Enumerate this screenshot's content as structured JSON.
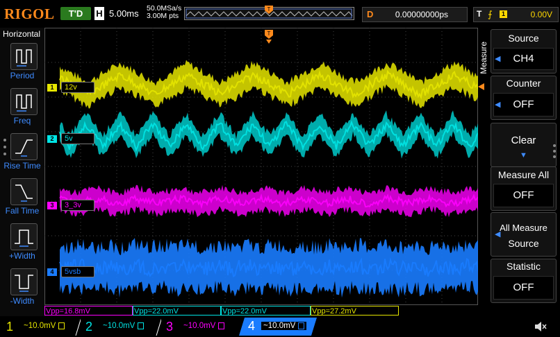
{
  "topbar": {
    "logo": "RIGOL",
    "trigger_status": "T'D",
    "horizontal_label": "H",
    "timebase": "5.00ms",
    "sample_rate": "50.0MSa/s",
    "memory_depth": "3.00M pts",
    "delay_label": "D",
    "delay_value": "0.00000000ps",
    "trigger_label": "T",
    "trigger_source": "1",
    "trigger_level": "0.00V"
  },
  "left_panel": {
    "title": "Horizontal",
    "items": [
      {
        "label": "Period",
        "icon": "period-icon"
      },
      {
        "label": "Freq",
        "icon": "freq-icon"
      },
      {
        "label": "Rise Time",
        "icon": "rise-time-icon"
      },
      {
        "label": "Fall Time",
        "icon": "fall-time-icon"
      },
      {
        "label": "+Width",
        "icon": "pos-width-icon"
      },
      {
        "label": "-Width",
        "icon": "neg-width-icon"
      }
    ]
  },
  "channels": [
    {
      "num": "1",
      "tag": "12v",
      "color": "#e6e600",
      "scale": "10.0mV"
    },
    {
      "num": "2",
      "tag": "5v",
      "color": "#00e5e5",
      "scale": "10.0mV"
    },
    {
      "num": "3",
      "tag": "3_3v",
      "color": "#ff00ff",
      "scale": "10.0mV"
    },
    {
      "num": "4",
      "tag": "5vsb",
      "color": "#1a7cff",
      "scale": "10.0mV"
    }
  ],
  "measurements": [
    {
      "text": "Vpp=16.8mV",
      "color": "#ff00ff"
    },
    {
      "text": "Vpp=22.0mV",
      "color": "#00e5e5"
    },
    {
      "text": "Vpp=22.0mV",
      "color": "#00e5e5"
    },
    {
      "text": "Vpp=27.2mV",
      "color": "#e6e600"
    }
  ],
  "right_menu": {
    "title": "Measure",
    "buttons": [
      {
        "head": "Source",
        "value": "CH4"
      },
      {
        "head": "Counter",
        "value": "OFF"
      },
      {
        "head": "Clear",
        "value": ""
      },
      {
        "head": "Measure All",
        "value": "OFF"
      },
      {
        "head": "All Measure",
        "value": "Source"
      },
      {
        "head": "Statistic",
        "value": "OFF"
      }
    ]
  },
  "colors": {
    "accent_orange": "#ff8a1c",
    "trigger_status_bg": "#2a7a1e",
    "menu_blue": "#3e8bff"
  }
}
